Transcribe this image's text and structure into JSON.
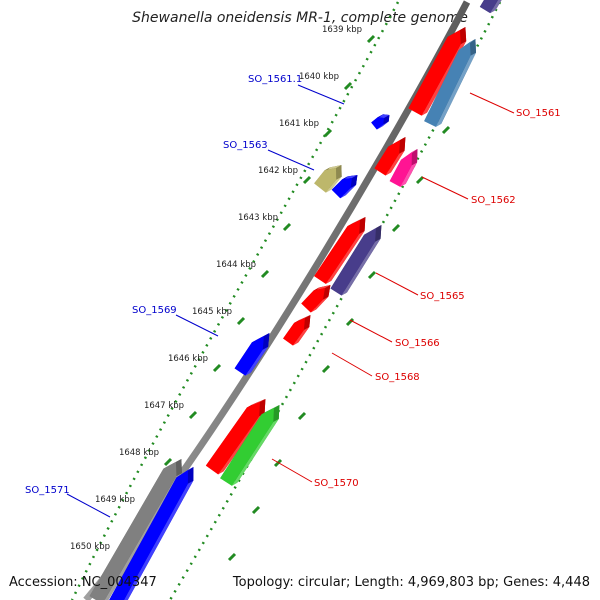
{
  "title": "Shewanella oneidensis MR-1, complete genome",
  "accession": "Accession: NC_004347",
  "topology": "Topology: circular; Length: 4,969,803 bp; Genes: 4,448",
  "colors": {
    "red": "#ff0000",
    "blue": "#0000ff",
    "steelblue": "#4682b4",
    "purple": "#483d8b",
    "magenta": "#ff1493",
    "khaki": "#bdb76b",
    "green": "#32cd32",
    "gray": "#808080",
    "tick": "#228b22",
    "label_blue": "#0000cc",
    "label_red": "#dd0000"
  },
  "ticks": [
    {
      "label": "1639 kbp"
    },
    {
      "label": "1640 kbp"
    },
    {
      "label": "1641 kbp"
    },
    {
      "label": "1642 kbp"
    },
    {
      "label": "1643 kbp"
    },
    {
      "label": "1644 kbp"
    },
    {
      "label": "1645 kbp"
    },
    {
      "label": "1646 kbp"
    },
    {
      "label": "1647 kbp"
    },
    {
      "label": "1648 kbp"
    },
    {
      "label": "1649 kbp"
    },
    {
      "label": "1650 kbp"
    }
  ],
  "gene_labels": [
    {
      "name": "SO_1561.1",
      "color": "label_blue"
    },
    {
      "name": "SO_1563",
      "color": "label_blue"
    },
    {
      "name": "SO_1569",
      "color": "label_blue"
    },
    {
      "name": "SO_1571",
      "color": "label_blue"
    },
    {
      "name": "SO_1561",
      "color": "label_red"
    },
    {
      "name": "SO_1562",
      "color": "label_red"
    },
    {
      "name": "SO_1565",
      "color": "label_red"
    },
    {
      "name": "SO_1566",
      "color": "label_red"
    },
    {
      "name": "SO_1568",
      "color": "label_red"
    },
    {
      "name": "SO_1570",
      "color": "label_red"
    }
  ]
}
